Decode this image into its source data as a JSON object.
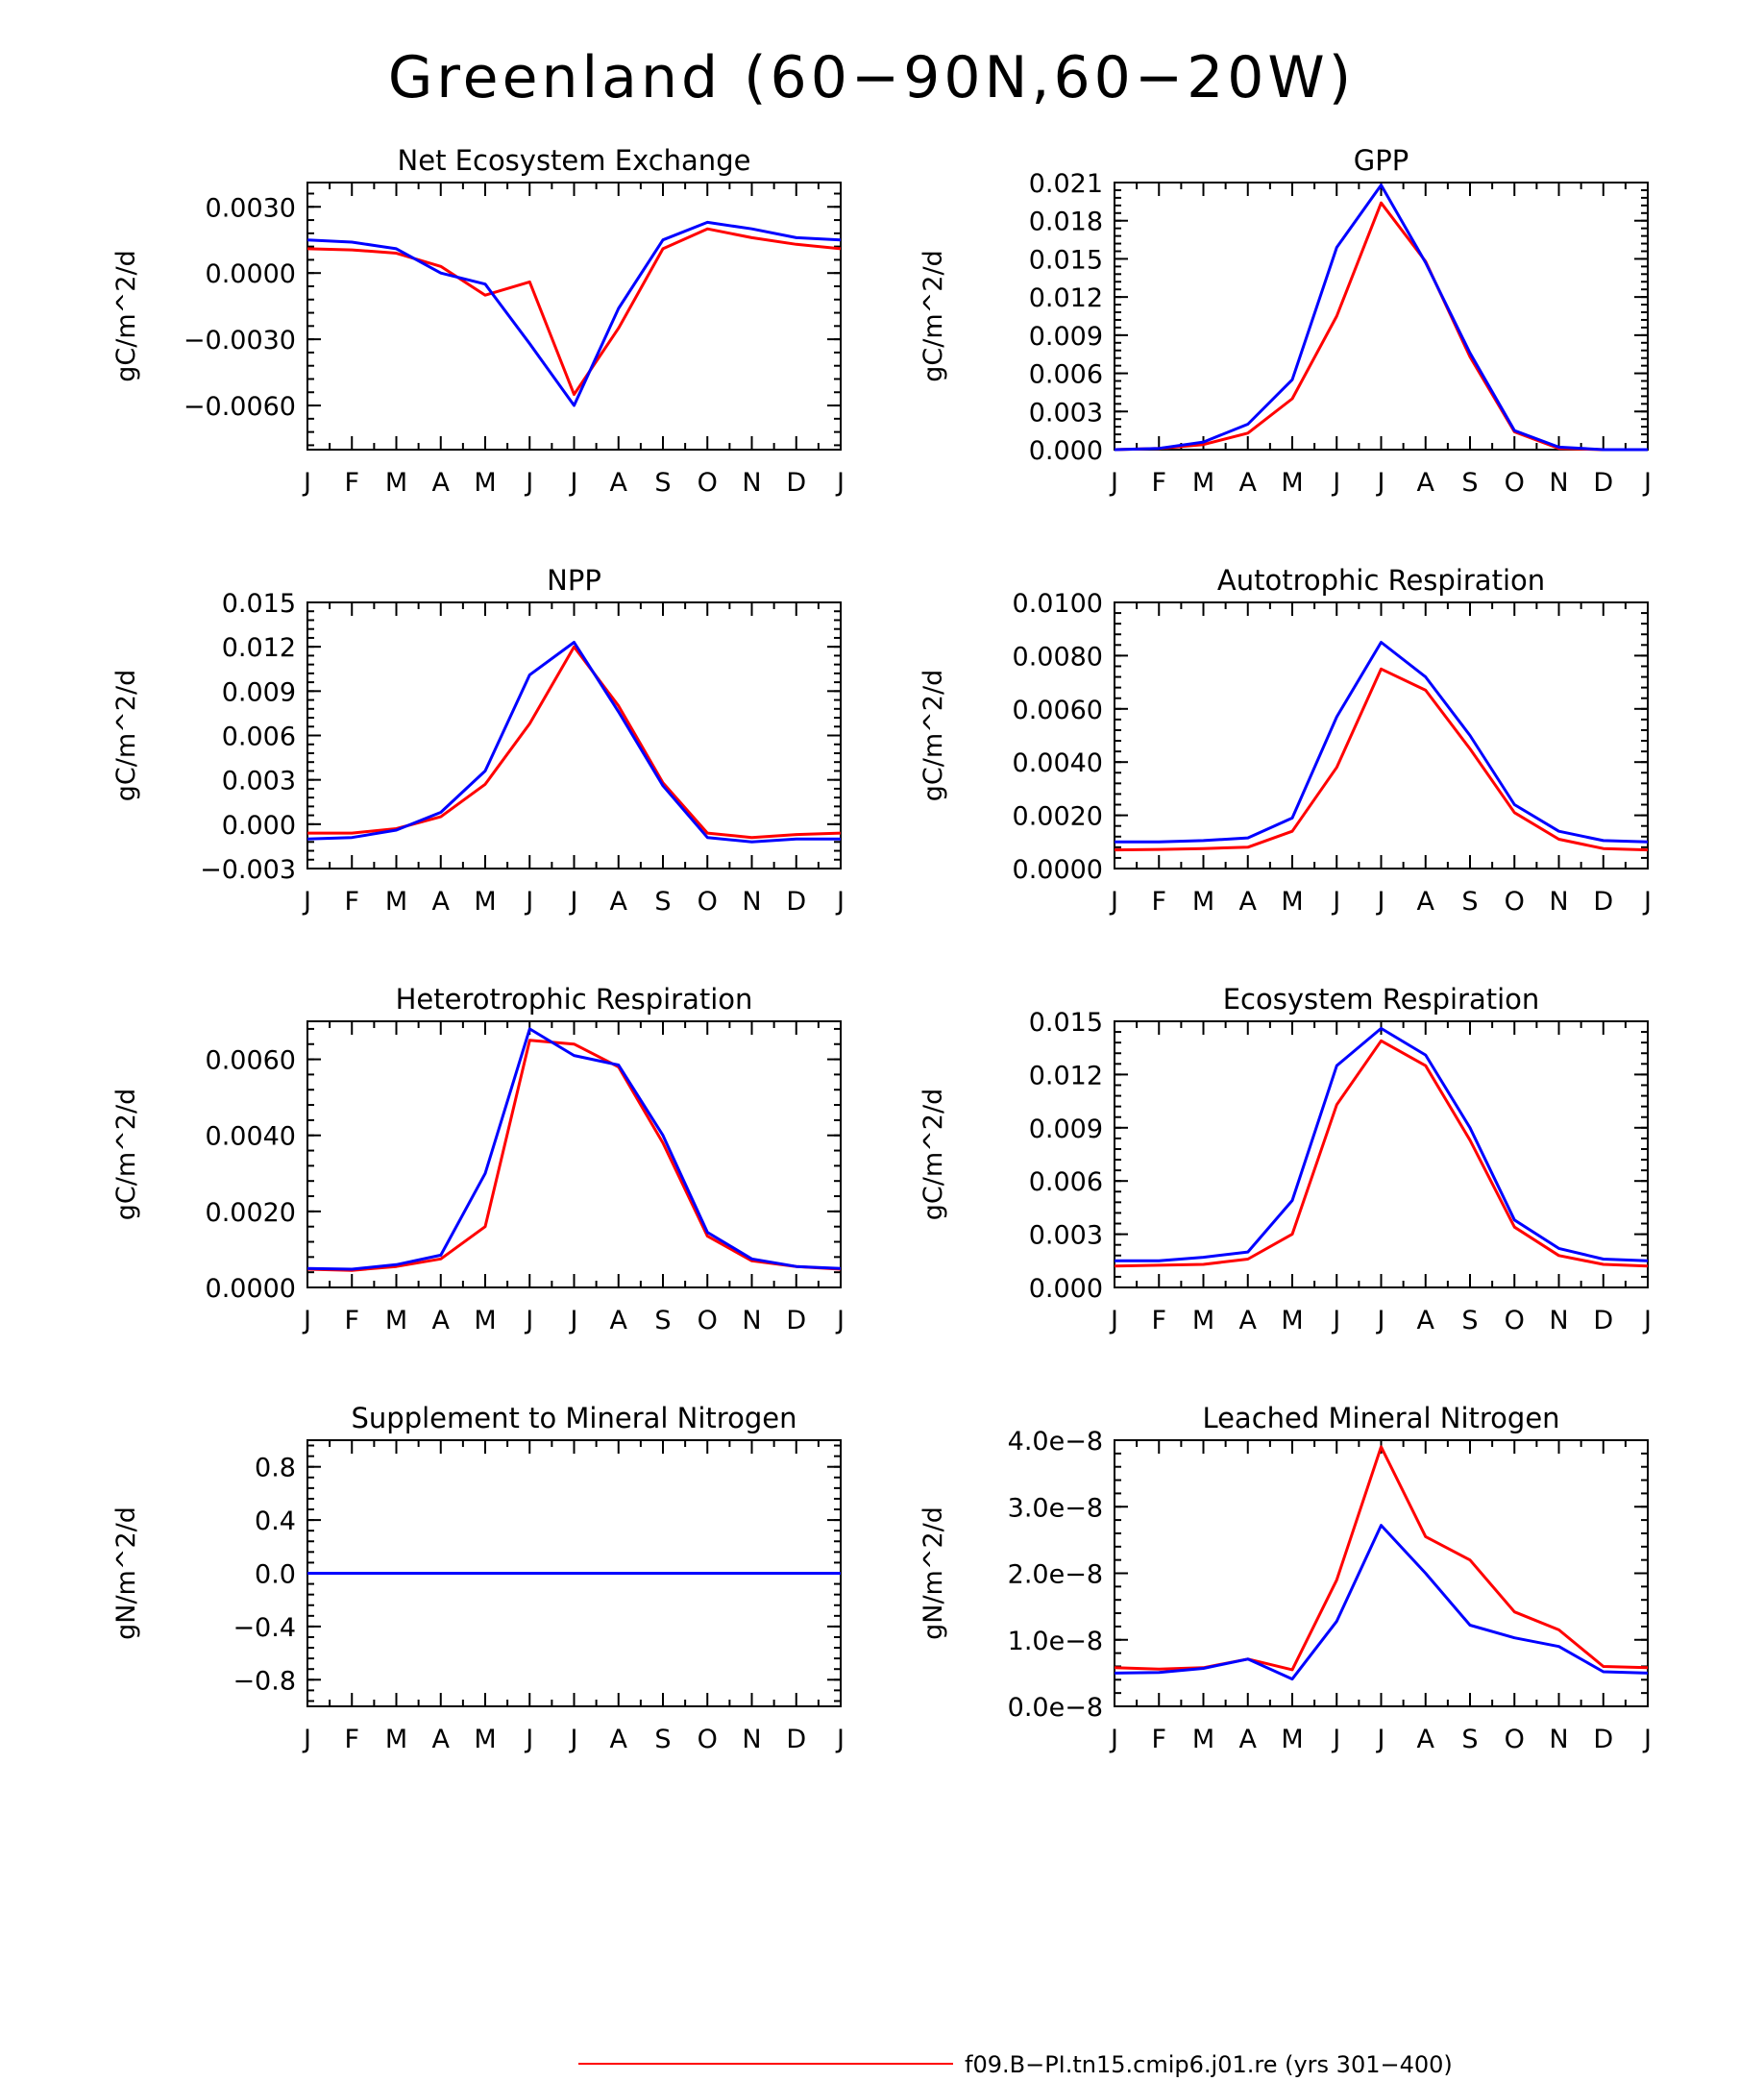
{
  "figure_title": "Greenland (60−90N,60−20W)",
  "legend": [
    {
      "label": "f09.B−PI.tn15.cmip6.j01.re (yrs 301−400)",
      "color": "#ff0000"
    }
  ],
  "colors": {
    "series1": "#ff0000",
    "series2": "#0000ff",
    "axis": "#000000"
  },
  "chart_data": [
    {
      "type": "line",
      "title": "Net Ecosystem Exchange",
      "ylabel": "gC/m^2/d",
      "xlabel": "",
      "categories": [
        "J",
        "F",
        "M",
        "A",
        "M",
        "J",
        "J",
        "A",
        "S",
        "O",
        "N",
        "D",
        "J"
      ],
      "ylim": [
        -0.008,
        0.0041
      ],
      "yticks": [
        0.003,
        0.0,
        -0.003,
        -0.006
      ],
      "ytick_labels": [
        "0.0030",
        "0.0000",
        "−0.0030",
        "−0.0060"
      ],
      "grid": false,
      "series": [
        {
          "color": "#ff0000",
          "values": [
            0.0011,
            0.00105,
            0.0009,
            0.0003,
            -0.001,
            -0.0004,
            -0.0055,
            -0.0025,
            0.0011,
            0.002,
            0.0016,
            0.0013,
            0.0011
          ]
        },
        {
          "color": "#0000ff",
          "values": [
            0.0015,
            0.0014,
            0.0011,
            0.0,
            -0.0005,
            -0.0032,
            -0.006,
            -0.0016,
            0.0015,
            0.0023,
            0.002,
            0.0016,
            0.0015
          ]
        }
      ]
    },
    {
      "type": "line",
      "title": "GPP",
      "ylabel": "gC/m^2/d",
      "xlabel": "",
      "categories": [
        "J",
        "F",
        "M",
        "A",
        "M",
        "J",
        "J",
        "A",
        "S",
        "O",
        "N",
        "D",
        "J"
      ],
      "ylim": [
        0.0,
        0.021
      ],
      "yticks": [
        0.021,
        0.018,
        0.015,
        0.012,
        0.009,
        0.006,
        0.003,
        0.0
      ],
      "ytick_labels": [
        "0.021",
        "0.018",
        "0.015",
        "0.012",
        "0.009",
        "0.006",
        "0.003",
        "0.000"
      ],
      "grid": false,
      "series": [
        {
          "color": "#ff0000",
          "values": [
            0.0,
            0.0001,
            0.0004,
            0.0013,
            0.004,
            0.0105,
            0.0194,
            0.0148,
            0.0073,
            0.0014,
            0.0001,
            0.0,
            0.0
          ]
        },
        {
          "color": "#0000ff",
          "values": [
            0.0,
            0.0001,
            0.0006,
            0.002,
            0.0055,
            0.0159,
            0.0208,
            0.0147,
            0.0076,
            0.0015,
            0.0002,
            0.0,
            0.0
          ]
        }
      ]
    },
    {
      "type": "line",
      "title": "NPP",
      "ylabel": "gC/m^2/d",
      "xlabel": "",
      "categories": [
        "J",
        "F",
        "M",
        "A",
        "M",
        "J",
        "J",
        "A",
        "S",
        "O",
        "N",
        "D",
        "J"
      ],
      "ylim": [
        -0.003,
        0.015
      ],
      "yticks": [
        0.015,
        0.012,
        0.009,
        0.006,
        0.003,
        0.0,
        -0.003
      ],
      "ytick_labels": [
        "0.015",
        "0.012",
        "0.009",
        "0.006",
        "0.003",
        "0.000",
        "−0.003"
      ],
      "grid": false,
      "series": [
        {
          "color": "#ff0000",
          "values": [
            -0.0006,
            -0.0006,
            -0.0003,
            0.0005,
            0.0027,
            0.0068,
            0.012,
            0.008,
            0.0028,
            -0.0006,
            -0.0009,
            -0.0007,
            -0.0006
          ]
        },
        {
          "color": "#0000ff",
          "values": [
            -0.001,
            -0.0009,
            -0.0004,
            0.0008,
            0.0036,
            0.0101,
            0.0123,
            0.0076,
            0.0026,
            -0.0009,
            -0.0012,
            -0.001,
            -0.001
          ]
        }
      ]
    },
    {
      "type": "line",
      "title": "Autotrophic Respiration",
      "ylabel": "gC/m^2/d",
      "xlabel": "",
      "categories": [
        "J",
        "F",
        "M",
        "A",
        "M",
        "J",
        "J",
        "A",
        "S",
        "O",
        "N",
        "D",
        "J"
      ],
      "ylim": [
        0.0,
        0.01
      ],
      "yticks": [
        0.01,
        0.008,
        0.006,
        0.004,
        0.002,
        0.0
      ],
      "ytick_labels": [
        "0.0100",
        "0.0080",
        "0.0060",
        "0.0040",
        "0.0020",
        "0.0000"
      ],
      "grid": false,
      "series": [
        {
          "color": "#ff0000",
          "values": [
            0.0007,
            0.00072,
            0.00075,
            0.0008,
            0.0014,
            0.0038,
            0.0075,
            0.0067,
            0.0045,
            0.0021,
            0.0011,
            0.00075,
            0.0007
          ]
        },
        {
          "color": "#0000ff",
          "values": [
            0.001,
            0.001,
            0.00105,
            0.00115,
            0.0019,
            0.0057,
            0.0085,
            0.0072,
            0.005,
            0.0024,
            0.0014,
            0.00105,
            0.001
          ]
        }
      ]
    },
    {
      "type": "line",
      "title": "Heterotrophic Respiration",
      "ylabel": "gC/m^2/d",
      "xlabel": "",
      "categories": [
        "J",
        "F",
        "M",
        "A",
        "M",
        "J",
        "J",
        "A",
        "S",
        "O",
        "N",
        "D",
        "J"
      ],
      "ylim": [
        0.0,
        0.007
      ],
      "yticks": [
        0.006,
        0.004,
        0.002,
        0.0
      ],
      "ytick_labels": [
        "0.0060",
        "0.0040",
        "0.0020",
        "0.0000"
      ],
      "grid": false,
      "series": [
        {
          "color": "#ff0000",
          "values": [
            0.00048,
            0.00045,
            0.00055,
            0.00075,
            0.0016,
            0.0065,
            0.0064,
            0.0058,
            0.0038,
            0.00135,
            0.0007,
            0.00055,
            0.00048
          ]
        },
        {
          "color": "#0000ff",
          "values": [
            0.0005,
            0.00048,
            0.0006,
            0.00085,
            0.003,
            0.0068,
            0.0061,
            0.00585,
            0.004,
            0.00145,
            0.00075,
            0.00055,
            0.0005
          ]
        }
      ]
    },
    {
      "type": "line",
      "title": "Ecosystem Respiration",
      "ylabel": "gC/m^2/d",
      "xlabel": "",
      "categories": [
        "J",
        "F",
        "M",
        "A",
        "M",
        "J",
        "J",
        "A",
        "S",
        "O",
        "N",
        "D",
        "J"
      ],
      "ylim": [
        0.0,
        0.015
      ],
      "yticks": [
        0.015,
        0.012,
        0.009,
        0.006,
        0.003,
        0.0
      ],
      "ytick_labels": [
        "0.015",
        "0.012",
        "0.009",
        "0.006",
        "0.003",
        "0.000"
      ],
      "grid": false,
      "series": [
        {
          "color": "#ff0000",
          "values": [
            0.0012,
            0.00125,
            0.0013,
            0.0016,
            0.003,
            0.0103,
            0.0139,
            0.0125,
            0.0083,
            0.0034,
            0.0018,
            0.0013,
            0.0012
          ]
        },
        {
          "color": "#0000ff",
          "values": [
            0.0015,
            0.0015,
            0.0017,
            0.002,
            0.0049,
            0.0125,
            0.0146,
            0.0131,
            0.009,
            0.0038,
            0.0022,
            0.0016,
            0.0015
          ]
        }
      ]
    },
    {
      "type": "line",
      "title": "Supplement to Mineral Nitrogen",
      "ylabel": "gN/m^2/d",
      "xlabel": "",
      "categories": [
        "J",
        "F",
        "M",
        "A",
        "M",
        "J",
        "J",
        "A",
        "S",
        "O",
        "N",
        "D",
        "J"
      ],
      "ylim": [
        -1.0,
        1.0
      ],
      "yticks": [
        0.8,
        0.4,
        0.0,
        -0.4,
        -0.8
      ],
      "ytick_labels": [
        "0.8",
        "0.4",
        "0.0",
        "−0.4",
        "−0.8"
      ],
      "grid": false,
      "series": [
        {
          "color": "#ff0000",
          "values": [
            0,
            0,
            0,
            0,
            0,
            0,
            0,
            0,
            0,
            0,
            0,
            0,
            0
          ]
        },
        {
          "color": "#0000ff",
          "values": [
            0,
            0,
            0,
            0,
            0,
            0,
            0,
            0,
            0,
            0,
            0,
            0,
            0
          ]
        }
      ]
    },
    {
      "type": "line",
      "title": "Leached Mineral Nitrogen",
      "ylabel": "gN/m^2/d",
      "xlabel": "",
      "categories": [
        "J",
        "F",
        "M",
        "A",
        "M",
        "J",
        "J",
        "A",
        "S",
        "O",
        "N",
        "D",
        "J"
      ],
      "ylim": [
        0.0,
        4e-08
      ],
      "yticks": [
        4e-08,
        3e-08,
        2e-08,
        1e-08,
        0.0
      ],
      "ytick_labels": [
        "4.0e−8",
        "3.0e−8",
        "2.0e−8",
        "1.0e−8",
        "0.0e−8"
      ],
      "grid": false,
      "series": [
        {
          "color": "#ff0000",
          "values": [
            5.8e-09,
            5.6e-09,
            5.8e-09,
            7.1e-09,
            5.5e-09,
            1.9e-08,
            3.9e-08,
            2.55e-08,
            2.2e-08,
            1.42e-08,
            1.15e-08,
            6e-09,
            5.8e-09
          ]
        },
        {
          "color": "#0000ff",
          "values": [
            5e-09,
            5.1e-09,
            5.7e-09,
            7.1e-09,
            4.1e-09,
            1.28e-08,
            2.72e-08,
            2e-08,
            1.22e-08,
            1.03e-08,
            9e-09,
            5.2e-09,
            5e-09
          ]
        }
      ]
    }
  ]
}
